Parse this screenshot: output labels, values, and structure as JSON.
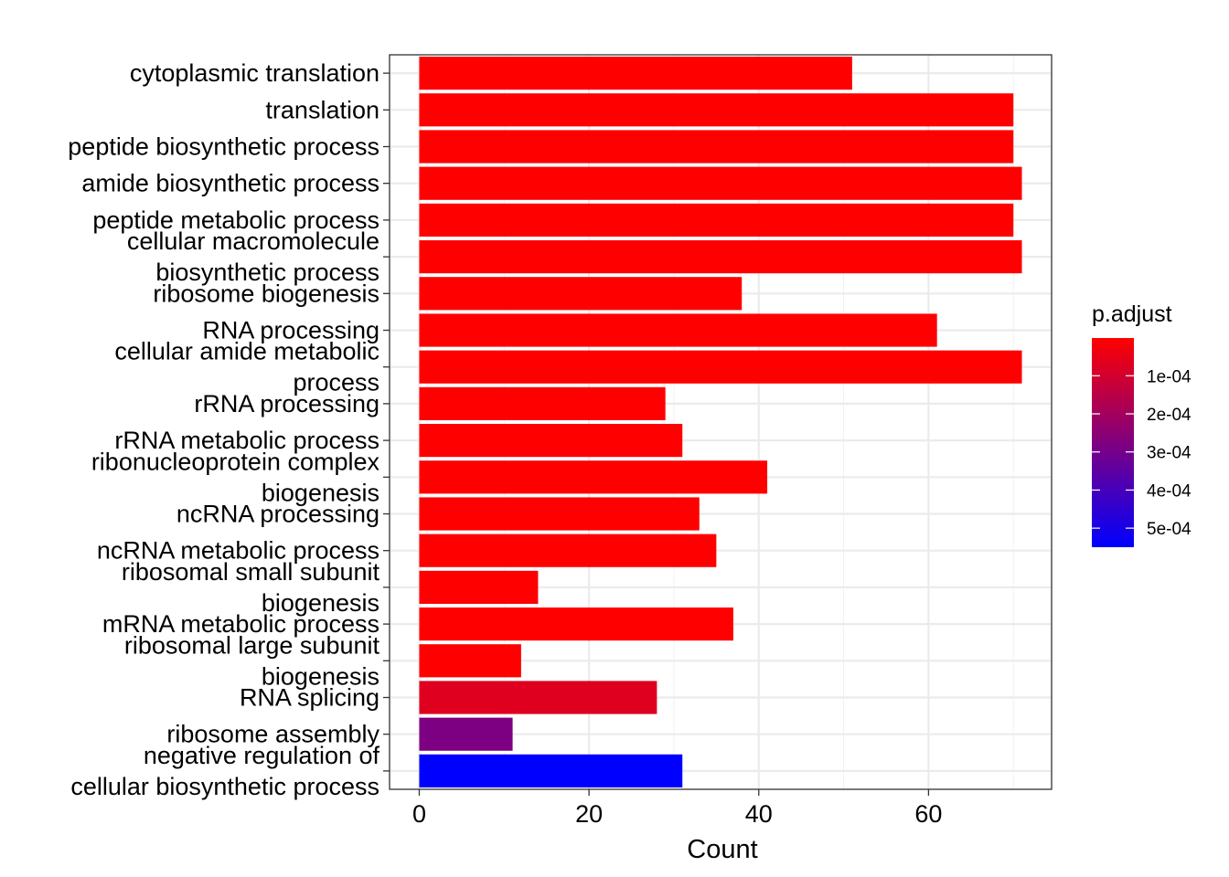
{
  "chart_data": {
    "type": "bar",
    "orientation": "horizontal",
    "title": "",
    "xlabel": "Count",
    "ylabel": "",
    "xlim": [
      -3.5,
      74.5
    ],
    "xticks": [
      0,
      20,
      40,
      60
    ],
    "grid": true,
    "categories": [
      "cytoplasmic translation",
      "translation",
      "peptide biosynthetic process",
      "amide biosynthetic process",
      "peptide metabolic process",
      "cellular macromolecule biosynthetic process",
      "ribosome biogenesis",
      "RNA processing",
      "cellular amide metabolic process",
      "rRNA processing",
      "rRNA metabolic process",
      "ribonucleoprotein complex biogenesis",
      "ncRNA processing",
      "ncRNA metabolic process",
      "ribosomal small subunit biogenesis",
      "mRNA metabolic process",
      "ribosomal large subunit biogenesis",
      "RNA splicing",
      "ribosome assembly",
      "negative regulation of cellular biosynthetic process"
    ],
    "category_lines": [
      [
        "cytoplasmic translation"
      ],
      [
        "translation"
      ],
      [
        "peptide biosynthetic process"
      ],
      [
        "amide biosynthetic process"
      ],
      [
        "peptide metabolic process"
      ],
      [
        "cellular macromolecule",
        "biosynthetic process"
      ],
      [
        "ribosome biogenesis"
      ],
      [
        "RNA processing"
      ],
      [
        "cellular amide metabolic",
        "process"
      ],
      [
        "rRNA processing"
      ],
      [
        "rRNA metabolic process"
      ],
      [
        "ribonucleoprotein complex",
        "biogenesis"
      ],
      [
        "ncRNA processing"
      ],
      [
        "ncRNA metabolic process"
      ],
      [
        "ribosomal small subunit",
        "biogenesis"
      ],
      [
        "mRNA metabolic process"
      ],
      [
        "ribosomal large subunit",
        "biogenesis"
      ],
      [
        "RNA splicing"
      ],
      [
        "ribosome assembly"
      ],
      [
        "negative regulation of",
        "cellular biosynthetic process"
      ]
    ],
    "values": [
      51,
      70,
      70,
      71,
      70,
      71,
      38,
      61,
      71,
      29,
      31,
      41,
      33,
      35,
      14,
      37,
      12,
      28,
      11,
      31
    ],
    "p_adjust": [
      1e-06,
      1e-06,
      1e-06,
      1e-06,
      1e-06,
      1e-06,
      1e-06,
      1e-06,
      1e-06,
      1e-06,
      1e-06,
      1e-06,
      1e-06,
      1e-06,
      1e-06,
      1e-06,
      1e-06,
      7e-05,
      0.00028,
      0.00055
    ],
    "legend": {
      "title": "p.adjust",
      "position": "right",
      "range": [
        1e-06,
        0.00055
      ],
      "ticks": [
        0.0001,
        0.0002,
        0.0003,
        0.0004,
        0.0005
      ],
      "tick_labels": [
        "1e-04",
        "2e-04",
        "3e-04",
        "4e-04",
        "5e-04"
      ],
      "low_color": "#FF0000",
      "high_color": "#0000FF"
    }
  }
}
